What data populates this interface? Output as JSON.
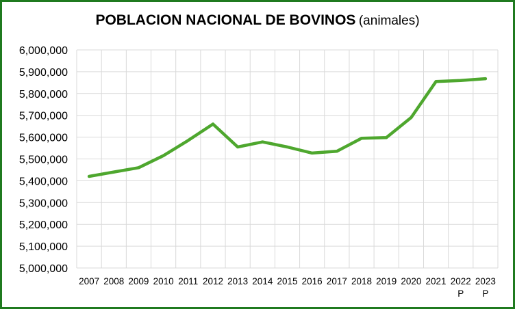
{
  "chart_data": {
    "type": "line",
    "title": "POBLACION NACIONAL DE BOVINOS",
    "subtitle": "(animales)",
    "xlabel": "",
    "ylabel": "",
    "categories": [
      "2007",
      "2008",
      "2009",
      "2010",
      "2011",
      "2012",
      "2013",
      "2014",
      "2015",
      "2016",
      "2017",
      "2018",
      "2019",
      "2020",
      "2021",
      "2022 P",
      "2023 P"
    ],
    "category_lines": [
      [
        "2007"
      ],
      [
        "2008"
      ],
      [
        "2009"
      ],
      [
        "2010"
      ],
      [
        "2011"
      ],
      [
        "2012"
      ],
      [
        "2013"
      ],
      [
        "2014"
      ],
      [
        "2015"
      ],
      [
        "2016"
      ],
      [
        "2017"
      ],
      [
        "2018"
      ],
      [
        "2019"
      ],
      [
        "2020"
      ],
      [
        "2021"
      ],
      [
        "2022",
        "P"
      ],
      [
        "2023",
        "P"
      ]
    ],
    "series": [
      {
        "values": [
          5420000,
          5440000,
          5460000,
          5515000,
          5585000,
          5660000,
          5555000,
          5578000,
          5555000,
          5527000,
          5535000,
          5595000,
          5598000,
          5690000,
          5855000,
          5860000,
          5868000
        ]
      }
    ],
    "ylim": [
      5000000,
      6000000
    ],
    "yticks": [
      5000000,
      5100000,
      5200000,
      5300000,
      5400000,
      5500000,
      5600000,
      5700000,
      5800000,
      5900000,
      6000000
    ],
    "ytick_labels": [
      "5,000,000",
      "5,100,000",
      "5,200,000",
      "5,300,000",
      "5,400,000",
      "5,500,000",
      "5,600,000",
      "5,700,000",
      "5,800,000",
      "5,900,000",
      "6,000,000"
    ],
    "grid": true,
    "colors": {
      "line": "#4ea72e",
      "grid": "#d9d9d9",
      "frame": "#1f7a1f"
    }
  }
}
